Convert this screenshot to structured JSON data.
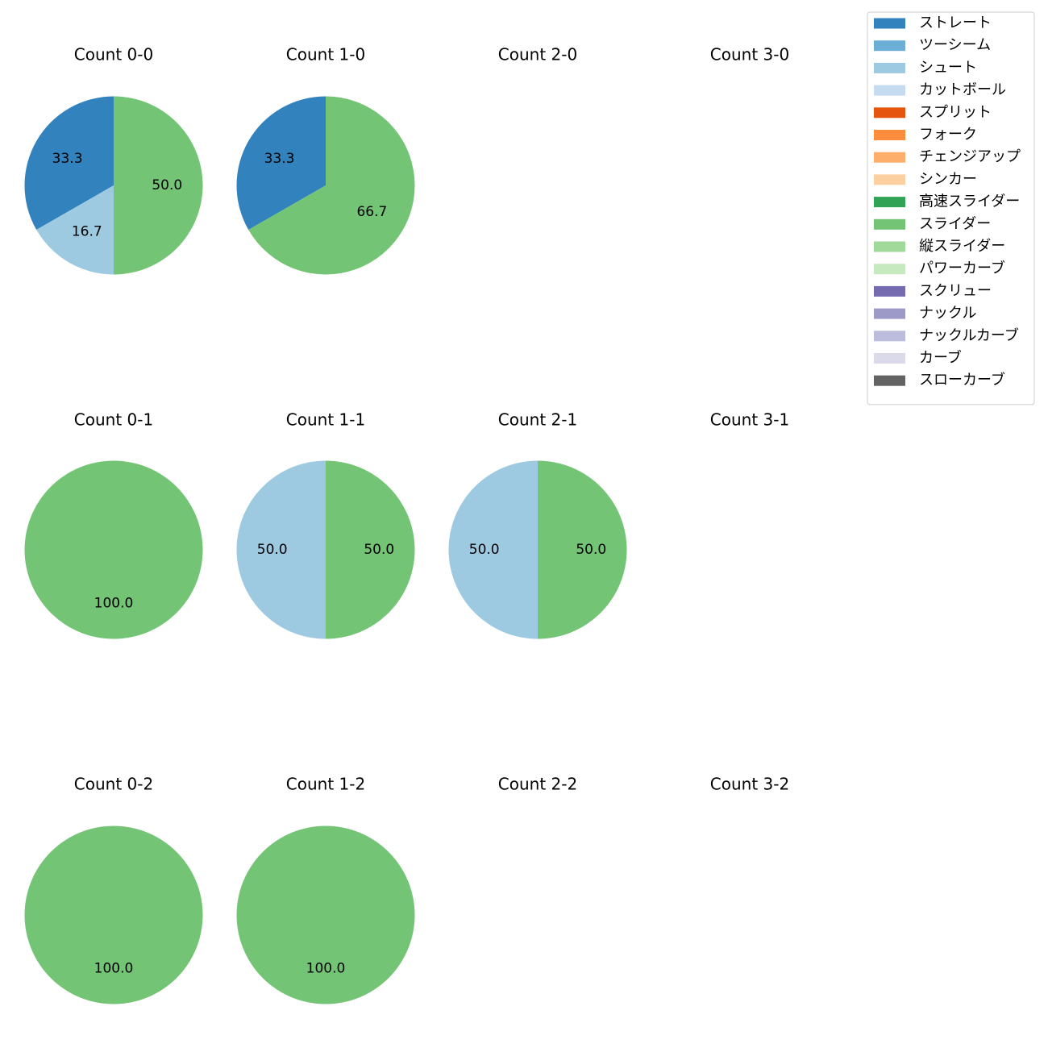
{
  "chart_data": {
    "type": "pie",
    "title": "",
    "legend": {
      "placement": "top-right",
      "items": [
        {
          "label": "ストレート",
          "color": "#3182bd"
        },
        {
          "label": "ツーシーム",
          "color": "#6baed6"
        },
        {
          "label": "シュート",
          "color": "#9ecae1"
        },
        {
          "label": "カットボール",
          "color": "#c6dbef"
        },
        {
          "label": "スプリット",
          "color": "#e6550d"
        },
        {
          "label": "フォーク",
          "color": "#fd8d3c"
        },
        {
          "label": "チェンジアップ",
          "color": "#fdae6b"
        },
        {
          "label": "シンカー",
          "color": "#fdd0a2"
        },
        {
          "label": "高速スライダー",
          "color": "#31a354"
        },
        {
          "label": "スライダー",
          "color": "#74c476"
        },
        {
          "label": "縦スライダー",
          "color": "#a1d99b"
        },
        {
          "label": "パワーカーブ",
          "color": "#c7e9c0"
        },
        {
          "label": "スクリュー",
          "color": "#756bb1"
        },
        {
          "label": "ナックル",
          "color": "#9e9ac8"
        },
        {
          "label": "ナックルカーブ",
          "color": "#bcbddc"
        },
        {
          "label": "カーブ",
          "color": "#dadaeb"
        },
        {
          "label": "スローカーブ",
          "color": "#636363"
        }
      ]
    },
    "panels": [
      {
        "title": "Count 0-0",
        "slices": [
          {
            "pitch": "ストレート",
            "value": 33.3,
            "label": "33.3"
          },
          {
            "pitch": "シュート",
            "value": 16.7,
            "label": "16.7"
          },
          {
            "pitch": "スライダー",
            "value": 50.0,
            "label": "50.0"
          }
        ]
      },
      {
        "title": "Count 1-0",
        "slices": [
          {
            "pitch": "ストレート",
            "value": 33.3,
            "label": "33.3"
          },
          {
            "pitch": "スライダー",
            "value": 66.7,
            "label": "66.7"
          }
        ]
      },
      {
        "title": "Count 2-0",
        "slices": []
      },
      {
        "title": "Count 3-0",
        "slices": []
      },
      {
        "title": "Count 0-1",
        "slices": [
          {
            "pitch": "スライダー",
            "value": 100.0,
            "label": "100.0"
          }
        ]
      },
      {
        "title": "Count 1-1",
        "slices": [
          {
            "pitch": "シュート",
            "value": 50.0,
            "label": "50.0"
          },
          {
            "pitch": "スライダー",
            "value": 50.0,
            "label": "50.0"
          }
        ]
      },
      {
        "title": "Count 2-1",
        "slices": [
          {
            "pitch": "シュート",
            "value": 50.0,
            "label": "50.0"
          },
          {
            "pitch": "スライダー",
            "value": 50.0,
            "label": "50.0"
          }
        ]
      },
      {
        "title": "Count 3-1",
        "slices": []
      },
      {
        "title": "Count 0-2",
        "slices": [
          {
            "pitch": "スライダー",
            "value": 100.0,
            "label": "100.0"
          }
        ]
      },
      {
        "title": "Count 1-2",
        "slices": [
          {
            "pitch": "スライダー",
            "value": 100.0,
            "label": "100.0"
          }
        ]
      },
      {
        "title": "Count 2-2",
        "slices": []
      },
      {
        "title": "Count 3-2",
        "slices": []
      }
    ]
  }
}
